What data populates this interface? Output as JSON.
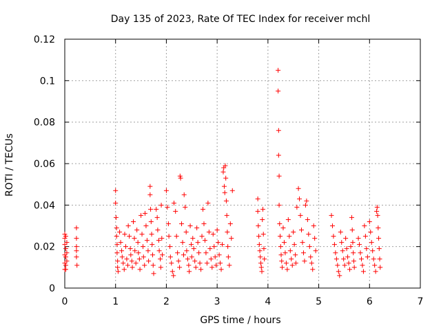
{
  "chart_data": {
    "type": "scatter",
    "title": "Day 135 of 2023, Rate Of TEC Index for receiver mchl",
    "xlabel": "GPS time / hours",
    "ylabel": "ROTI / TECUs",
    "xlim": [
      0,
      7
    ],
    "ylim": [
      0,
      0.12
    ],
    "xticks": [
      0,
      1,
      2,
      3,
      4,
      5,
      6,
      7
    ],
    "yticks": [
      0,
      0.02,
      0.04,
      0.06,
      0.08,
      0.1,
      0.12
    ],
    "xtick_labels": [
      "0",
      "1",
      "2",
      "3",
      "4",
      "5",
      "6",
      "7"
    ],
    "ytick_labels": [
      "0",
      "0.02",
      "0.04",
      "0.06",
      "0.08",
      "0.1",
      "0.12"
    ],
    "grid": true,
    "marker": "+",
    "color": "#ff0000",
    "series": [
      {
        "name": "ROTI",
        "points": [
          [
            0.0,
            0.026
          ],
          [
            0.0,
            0.024
          ],
          [
            0.0,
            0.021
          ],
          [
            0.0,
            0.016
          ],
          [
            0.0,
            0.012
          ],
          [
            0.0,
            0.009
          ],
          [
            0.02,
            0.025
          ],
          [
            0.02,
            0.019
          ],
          [
            0.02,
            0.015
          ],
          [
            0.02,
            0.011
          ],
          [
            0.02,
            0.009
          ],
          [
            0.04,
            0.022
          ],
          [
            0.04,
            0.017
          ],
          [
            0.04,
            0.013
          ],
          [
            0.23,
            0.029
          ],
          [
            0.23,
            0.024
          ],
          [
            0.23,
            0.02
          ],
          [
            0.23,
            0.018
          ],
          [
            0.23,
            0.015
          ],
          [
            0.24,
            0.011
          ],
          [
            1.0,
            0.047
          ],
          [
            1.0,
            0.041
          ],
          [
            1.01,
            0.034
          ],
          [
            1.02,
            0.029
          ],
          [
            1.02,
            0.025
          ],
          [
            1.03,
            0.021
          ],
          [
            1.03,
            0.017
          ],
          [
            1.04,
            0.013
          ],
          [
            1.04,
            0.01
          ],
          [
            1.05,
            0.008
          ],
          [
            1.08,
            0.027
          ],
          [
            1.1,
            0.022
          ],
          [
            1.12,
            0.018
          ],
          [
            1.13,
            0.015
          ],
          [
            1.15,
            0.012
          ],
          [
            1.17,
            0.009
          ],
          [
            1.18,
            0.026
          ],
          [
            1.2,
            0.02
          ],
          [
            1.22,
            0.014
          ],
          [
            1.24,
            0.011
          ],
          [
            1.25,
            0.03
          ],
          [
            1.27,
            0.025
          ],
          [
            1.29,
            0.019
          ],
          [
            1.3,
            0.016
          ],
          [
            1.32,
            0.013
          ],
          [
            1.33,
            0.01
          ],
          [
            1.35,
            0.032
          ],
          [
            1.37,
            0.024
          ],
          [
            1.38,
            0.018
          ],
          [
            1.4,
            0.012
          ],
          [
            1.42,
            0.028
          ],
          [
            1.44,
            0.022
          ],
          [
            1.45,
            0.017
          ],
          [
            1.47,
            0.014
          ],
          [
            1.48,
            0.009
          ],
          [
            1.5,
            0.035
          ],
          [
            1.52,
            0.026
          ],
          [
            1.54,
            0.02
          ],
          [
            1.55,
            0.015
          ],
          [
            1.57,
            0.011
          ],
          [
            1.58,
            0.036
          ],
          [
            1.6,
            0.03
          ],
          [
            1.62,
            0.023
          ],
          [
            1.64,
            0.018
          ],
          [
            1.65,
            0.013
          ],
          [
            1.68,
            0.049
          ],
          [
            1.68,
            0.045
          ],
          [
            1.69,
            0.038
          ],
          [
            1.7,
            0.032
          ],
          [
            1.71,
            0.026
          ],
          [
            1.72,
            0.021
          ],
          [
            1.73,
            0.016
          ],
          [
            1.74,
            0.011
          ],
          [
            1.75,
            0.007
          ],
          [
            1.8,
            0.038
          ],
          [
            1.82,
            0.034
          ],
          [
            1.83,
            0.028
          ],
          [
            1.85,
            0.023
          ],
          [
            1.86,
            0.018
          ],
          [
            1.88,
            0.014
          ],
          [
            1.89,
            0.01
          ],
          [
            1.9,
            0.04
          ],
          [
            1.91,
            0.024
          ],
          [
            1.92,
            0.016
          ],
          [
            2.0,
            0.047
          ],
          [
            2.02,
            0.039
          ],
          [
            2.04,
            0.031
          ],
          [
            2.05,
            0.025
          ],
          [
            2.07,
            0.02
          ],
          [
            2.08,
            0.015
          ],
          [
            2.1,
            0.012
          ],
          [
            2.12,
            0.008
          ],
          [
            2.14,
            0.006
          ],
          [
            2.15,
            0.041
          ],
          [
            2.18,
            0.037
          ],
          [
            2.2,
            0.025
          ],
          [
            2.22,
            0.017
          ],
          [
            2.24,
            0.013
          ],
          [
            2.26,
            0.01
          ],
          [
            2.27,
            0.054
          ],
          [
            2.28,
            0.053
          ],
          [
            2.3,
            0.031
          ],
          [
            2.32,
            0.022
          ],
          [
            2.34,
            0.016
          ],
          [
            2.35,
            0.045
          ],
          [
            2.37,
            0.039
          ],
          [
            2.39,
            0.027
          ],
          [
            2.4,
            0.018
          ],
          [
            2.42,
            0.014
          ],
          [
            2.44,
            0.011
          ],
          [
            2.45,
            0.008
          ],
          [
            2.47,
            0.03
          ],
          [
            2.49,
            0.021
          ],
          [
            2.5,
            0.015
          ],
          [
            2.52,
            0.024
          ],
          [
            2.54,
            0.019
          ],
          [
            2.56,
            0.013
          ],
          [
            2.58,
            0.01
          ],
          [
            2.6,
            0.029
          ],
          [
            2.62,
            0.022
          ],
          [
            2.64,
            0.017
          ],
          [
            2.66,
            0.012
          ],
          [
            2.68,
            0.009
          ],
          [
            2.7,
            0.025
          ],
          [
            2.72,
            0.038
          ],
          [
            2.74,
            0.031
          ],
          [
            2.76,
            0.023
          ],
          [
            2.78,
            0.017
          ],
          [
            2.8,
            0.012
          ],
          [
            2.82,
            0.041
          ],
          [
            2.84,
            0.027
          ],
          [
            2.86,
            0.019
          ],
          [
            2.88,
            0.014
          ],
          [
            2.9,
            0.01
          ],
          [
            2.92,
            0.026
          ],
          [
            2.94,
            0.02
          ],
          [
            2.96,
            0.015
          ],
          [
            2.98,
            0.011
          ],
          [
            3.0,
            0.028
          ],
          [
            3.02,
            0.022
          ],
          [
            3.04,
            0.016
          ],
          [
            3.06,
            0.012
          ],
          [
            3.08,
            0.009
          ],
          [
            3.1,
            0.021
          ],
          [
            3.12,
            0.056
          ],
          [
            3.13,
            0.058
          ],
          [
            3.14,
            0.049
          ],
          [
            3.15,
            0.046
          ],
          [
            3.16,
            0.059
          ],
          [
            3.17,
            0.053
          ],
          [
            3.18,
            0.042
          ],
          [
            3.19,
            0.035
          ],
          [
            3.2,
            0.027
          ],
          [
            3.21,
            0.02
          ],
          [
            3.22,
            0.015
          ],
          [
            3.24,
            0.011
          ],
          [
            3.26,
            0.031
          ],
          [
            3.28,
            0.024
          ],
          [
            3.3,
            0.047
          ],
          [
            3.8,
            0.043
          ],
          [
            3.8,
            0.037
          ],
          [
            3.81,
            0.03
          ],
          [
            3.82,
            0.025
          ],
          [
            3.83,
            0.021
          ],
          [
            3.84,
            0.018
          ],
          [
            3.85,
            0.015
          ],
          [
            3.86,
            0.012
          ],
          [
            3.87,
            0.01
          ],
          [
            3.88,
            0.008
          ],
          [
            3.89,
            0.033
          ],
          [
            3.9,
            0.038
          ],
          [
            3.91,
            0.026
          ],
          [
            3.92,
            0.019
          ],
          [
            3.93,
            0.014
          ],
          [
            4.2,
            0.105
          ],
          [
            4.2,
            0.095
          ],
          [
            4.21,
            0.076
          ],
          [
            4.21,
            0.064
          ],
          [
            4.22,
            0.054
          ],
          [
            4.22,
            0.04
          ],
          [
            4.23,
            0.031
          ],
          [
            4.24,
            0.025
          ],
          [
            4.25,
            0.02
          ],
          [
            4.26,
            0.016
          ],
          [
            4.27,
            0.013
          ],
          [
            4.28,
            0.01
          ],
          [
            4.3,
            0.029
          ],
          [
            4.32,
            0.022
          ],
          [
            4.34,
            0.017
          ],
          [
            4.36,
            0.012
          ],
          [
            4.38,
            0.009
          ],
          [
            4.4,
            0.033
          ],
          [
            4.42,
            0.025
          ],
          [
            4.44,
            0.018
          ],
          [
            4.46,
            0.014
          ],
          [
            4.48,
            0.011
          ],
          [
            4.5,
            0.027
          ],
          [
            4.52,
            0.021
          ],
          [
            4.54,
            0.016
          ],
          [
            4.55,
            0.012
          ],
          [
            4.57,
            0.039
          ],
          [
            4.6,
            0.048
          ],
          [
            4.62,
            0.043
          ],
          [
            4.64,
            0.035
          ],
          [
            4.66,
            0.028
          ],
          [
            4.68,
            0.022
          ],
          [
            4.7,
            0.017
          ],
          [
            4.72,
            0.013
          ],
          [
            4.74,
            0.04
          ],
          [
            4.76,
            0.042
          ],
          [
            4.78,
            0.033
          ],
          [
            4.8,
            0.026
          ],
          [
            4.82,
            0.02
          ],
          [
            4.84,
            0.015
          ],
          [
            4.86,
            0.012
          ],
          [
            4.88,
            0.009
          ],
          [
            4.9,
            0.03
          ],
          [
            4.92,
            0.024
          ],
          [
            4.94,
            0.018
          ],
          [
            5.25,
            0.035
          ],
          [
            5.27,
            0.03
          ],
          [
            5.29,
            0.025
          ],
          [
            5.31,
            0.021
          ],
          [
            5.33,
            0.017
          ],
          [
            5.35,
            0.014
          ],
          [
            5.37,
            0.011
          ],
          [
            5.39,
            0.008
          ],
          [
            5.41,
            0.006
          ],
          [
            5.43,
            0.027
          ],
          [
            5.45,
            0.022
          ],
          [
            5.47,
            0.018
          ],
          [
            5.49,
            0.014
          ],
          [
            5.51,
            0.011
          ],
          [
            5.53,
            0.024
          ],
          [
            5.55,
            0.019
          ],
          [
            5.57,
            0.015
          ],
          [
            5.59,
            0.012
          ],
          [
            5.61,
            0.009
          ],
          [
            5.63,
            0.02
          ],
          [
            5.65,
            0.034
          ],
          [
            5.66,
            0.028
          ],
          [
            5.67,
            0.022
          ],
          [
            5.68,
            0.017
          ],
          [
            5.69,
            0.013
          ],
          [
            5.7,
            0.01
          ],
          [
            5.78,
            0.024
          ],
          [
            5.8,
            0.021
          ],
          [
            5.82,
            0.017
          ],
          [
            5.84,
            0.014
          ],
          [
            5.86,
            0.011
          ],
          [
            5.88,
            0.008
          ],
          [
            5.9,
            0.03
          ],
          [
            5.92,
            0.025
          ],
          [
            5.94,
            0.019
          ],
          [
            5.96,
            0.015
          ],
          [
            6.0,
            0.032
          ],
          [
            6.02,
            0.027
          ],
          [
            6.04,
            0.022
          ],
          [
            6.06,
            0.018
          ],
          [
            6.08,
            0.014
          ],
          [
            6.1,
            0.011
          ],
          [
            6.12,
            0.008
          ],
          [
            6.14,
            0.037
          ],
          [
            6.15,
            0.039
          ],
          [
            6.16,
            0.035
          ],
          [
            6.17,
            0.029
          ],
          [
            6.18,
            0.024
          ],
          [
            6.19,
            0.019
          ],
          [
            6.2,
            0.014
          ],
          [
            6.21,
            0.01
          ]
        ]
      }
    ]
  }
}
